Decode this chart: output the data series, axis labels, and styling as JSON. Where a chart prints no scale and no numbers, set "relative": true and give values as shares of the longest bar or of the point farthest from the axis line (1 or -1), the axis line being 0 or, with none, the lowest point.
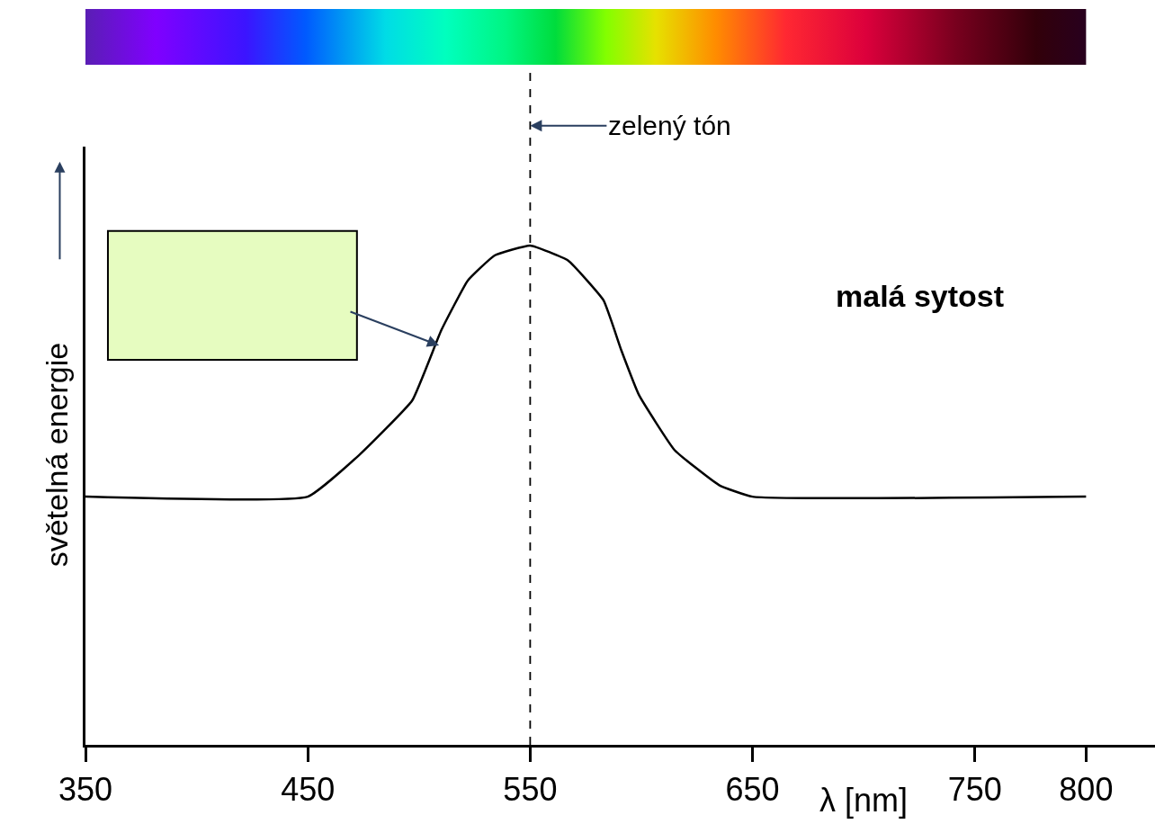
{
  "chart_data": {
    "type": "line",
    "relative": true,
    "xlabel": "λ [nm]",
    "ylabel": "světelná energie",
    "x": [
      350,
      450,
      473,
      497,
      510,
      522,
      534,
      550,
      567,
      583,
      591,
      599,
      615,
      635,
      650,
      800
    ],
    "series": [
      {
        "color": "#000000",
        "values": [
          0.497,
          0.497,
          0.58,
          0.69,
          0.83,
          0.93,
          0.98,
          1.0,
          0.97,
          0.89,
          0.79,
          0.7,
          0.59,
          0.52,
          0.497,
          0.497
        ]
      }
    ],
    "xlim": [
      350,
      831
    ],
    "xticks": [
      350,
      450,
      550,
      650,
      750,
      800
    ],
    "ref_lines": [
      {
        "axis": "x",
        "value": 550,
        "label": "zelený tón",
        "color": "#000000",
        "line_style": "dashed"
      }
    ],
    "annotations": [
      "malá sytost"
    ],
    "tick_labels": "x",
    "legend": false,
    "marker": "none",
    "line_style": "solid"
  }
}
